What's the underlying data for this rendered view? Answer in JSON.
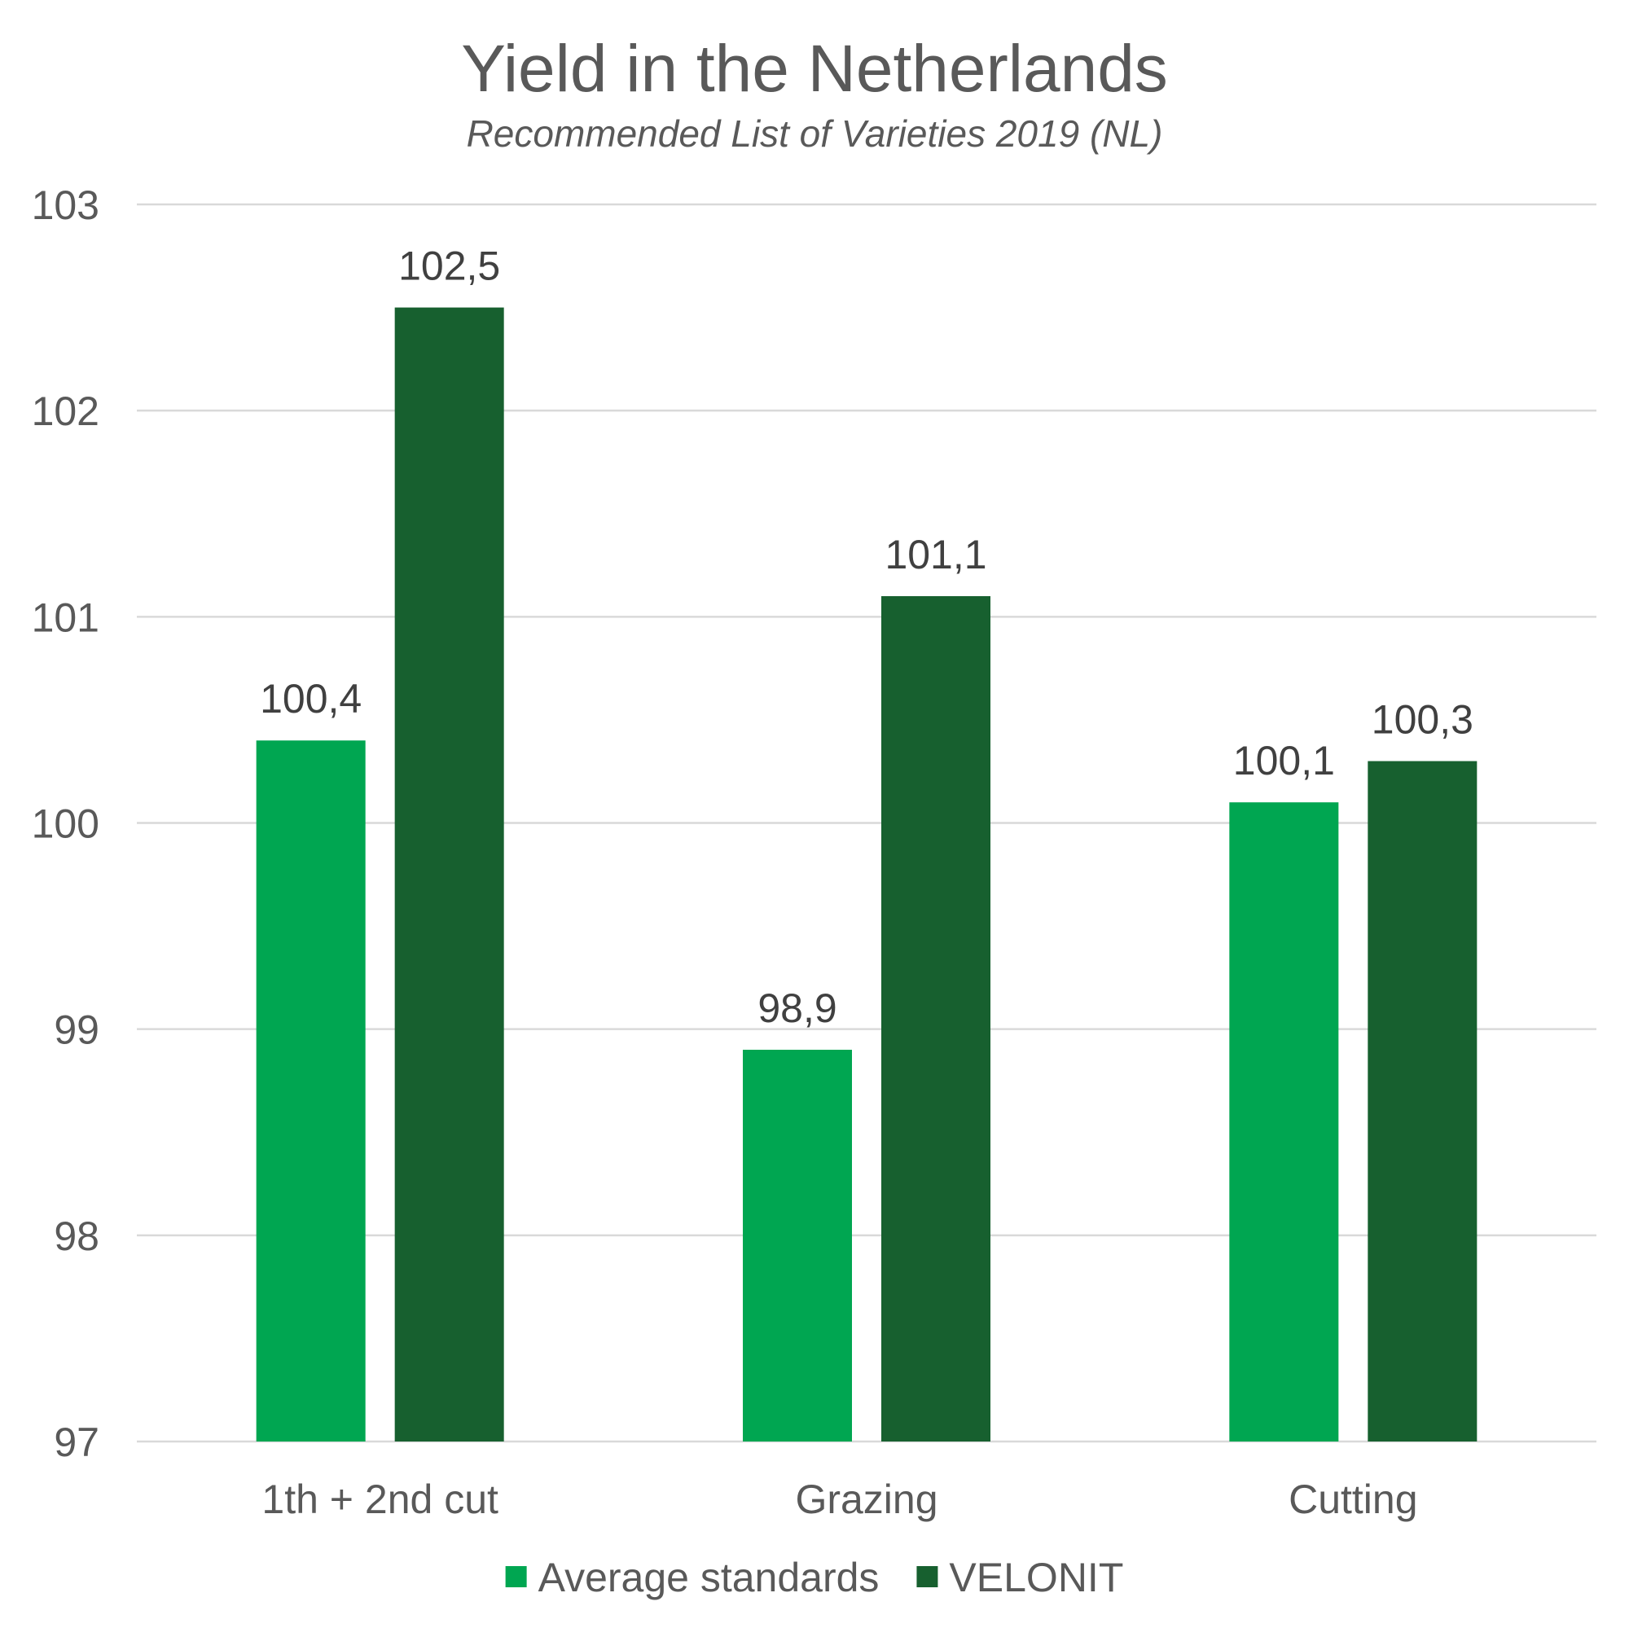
{
  "chart_data": {
    "type": "bar",
    "title": "Yield in the Netherlands",
    "subtitle": "Recommended List of Varieties 2019 (NL)",
    "categories": [
      "1th + 2nd cut",
      "Grazing",
      "Cutting"
    ],
    "series": [
      {
        "name": "Average standards",
        "color": "#00A651",
        "values": [
          100.4,
          98.9,
          100.1
        ],
        "labels": [
          "100,4",
          "98,9",
          "100,1"
        ]
      },
      {
        "name": "VELONIT",
        "color": "#17602F",
        "values": [
          102.5,
          101.1,
          100.3
        ],
        "labels": [
          "102,5",
          "101,1",
          "100,3"
        ]
      }
    ],
    "ylim": [
      97,
      103
    ],
    "yticks": [
      "97",
      "98",
      "99",
      "100",
      "101",
      "102",
      "103"
    ],
    "grid": true,
    "legend_position": "bottom"
  }
}
